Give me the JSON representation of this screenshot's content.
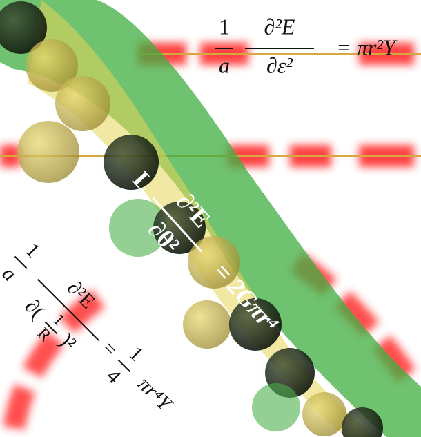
{
  "equations": [
    {
      "coef_num": "1",
      "coef_den": "a",
      "num": "∂²E",
      "den": "∂ε²",
      "rhs": "= πr²Y"
    },
    {
      "coef": "L",
      "num": "∂²E",
      "den": "∂θ²",
      "rhs": "= 2Gπr⁴"
    },
    {
      "coef_num": "1",
      "coef_den": "a",
      "num": "∂²E",
      "den_open": "∂(",
      "den_inner_num": "1",
      "den_inner_den": "R",
      "den_close": ")²",
      "eq": "=",
      "rhs_num": "1",
      "rhs_den": "4",
      "rhs": "πr⁴Y"
    }
  ]
}
